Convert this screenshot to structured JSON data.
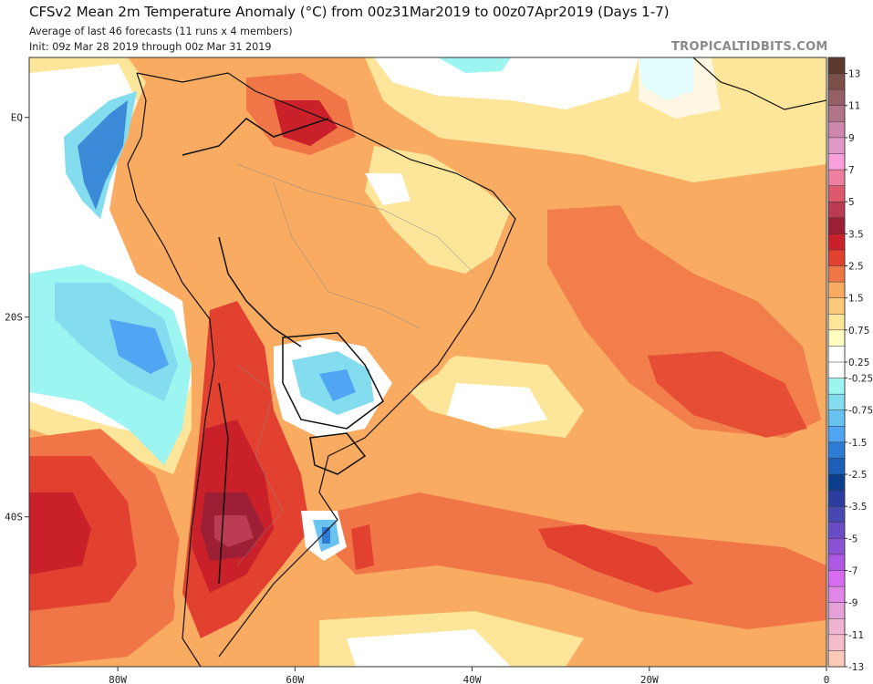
{
  "header": {
    "title": "CFSv2 Mean 2m Temperature Anomaly (°C) from 00z31Mar2019 to 00z07Apr2019 (Days 1-7)",
    "subtitle": "Average of last 46 forecasts (11 runs x 4 members)",
    "init": "Init: 09z Mar 28 2019 through 00z Mar 31 2019",
    "brand": "TROPICALTIDBITS.COM"
  },
  "axes": {
    "x_ticks": [
      {
        "label": "80W",
        "lon": -80
      },
      {
        "label": "60W",
        "lon": -60
      },
      {
        "label": "40W",
        "lon": -40
      },
      {
        "label": "20W",
        "lon": -20
      },
      {
        "label": "0",
        "lon": 0
      }
    ],
    "y_ticks": [
      {
        "label": "EQ",
        "lat": 0
      },
      {
        "label": "20S",
        "lat": -20
      },
      {
        "label": "40S",
        "lat": -40
      }
    ],
    "lon_range": [
      -90,
      0
    ],
    "lat_range": [
      -55,
      6
    ]
  },
  "colorbar": {
    "units": "°C",
    "bins": [
      {
        "color": "#5c3b2e"
      },
      {
        "color": "#7b5048"
      },
      {
        "color": "#966068"
      },
      {
        "color": "#b27488"
      },
      {
        "color": "#cd86ac"
      },
      {
        "color": "#e19ac8"
      },
      {
        "color": "#f9a0dc"
      },
      {
        "color": "#ef7fa0"
      },
      {
        "color": "#dc5a6c"
      },
      {
        "color": "#bb3b52"
      },
      {
        "color": "#9c1f35"
      },
      {
        "color": "#c9202a"
      },
      {
        "color": "#e2412f"
      },
      {
        "color": "#f07648"
      },
      {
        "color": "#f9ab62"
      },
      {
        "color": "#fcc97a"
      },
      {
        "color": "#fde599"
      },
      {
        "color": "#fffcc0"
      },
      {
        "color": "#ffffff"
      },
      {
        "color": "#ffffff"
      },
      {
        "color": "#9df5f2"
      },
      {
        "color": "#84dcef"
      },
      {
        "color": "#6ac2f0"
      },
      {
        "color": "#51a6f3"
      },
      {
        "color": "#2d7bd4"
      },
      {
        "color": "#1b5fb9"
      },
      {
        "color": "#0c3e8e"
      },
      {
        "color": "#2b3d9f"
      },
      {
        "color": "#4848b2"
      },
      {
        "color": "#6a4dc6"
      },
      {
        "color": "#8b52d6"
      },
      {
        "color": "#b058e6"
      },
      {
        "color": "#d86cf0"
      },
      {
        "color": "#df86e6"
      },
      {
        "color": "#e6a0d8"
      },
      {
        "color": "#f0b3d2"
      },
      {
        "color": "#f7bccb"
      },
      {
        "color": "#fdcab8"
      }
    ],
    "labels": [
      "13",
      "11",
      "9",
      "7",
      "5",
      "3.5",
      "2.5",
      "1.5",
      "0.75",
      "0.25",
      "-0.25",
      "-0.75",
      "-1.5",
      "-2.5",
      "-3.5",
      "-5",
      "-7",
      "-9",
      "-11",
      "-13"
    ]
  },
  "legend_levels": {
    "warm": [
      "13",
      "11",
      "9",
      "7",
      "5",
      "3.5",
      "2.5",
      "1.5",
      "0.75",
      "0.25"
    ],
    "cool": [
      "-0.25",
      "-0.75",
      "-1.5",
      "-2.5",
      "-3.5",
      "-5",
      "-7",
      "-9",
      "-11",
      "-13"
    ]
  },
  "map_features": {
    "regions": [
      {
        "name": "warm-anomaly-patagonia",
        "peak": "5"
      },
      {
        "name": "warm-anomaly-guiana",
        "peak": "3.5"
      },
      {
        "name": "warm-anomaly-south-pacific",
        "peak": "3.5"
      },
      {
        "name": "warm-anomaly-south-atlantic-band",
        "peak": "2.5"
      },
      {
        "name": "warm-anomaly-central-atlantic",
        "peak": "2.5"
      },
      {
        "name": "cold-anomaly-east-pacific",
        "peak": "-2.5"
      },
      {
        "name": "cold-anomaly-paraguay",
        "peak": "-1.5"
      },
      {
        "name": "cold-anomaly-argentine-shelf",
        "peak": "-2.5"
      }
    ]
  }
}
